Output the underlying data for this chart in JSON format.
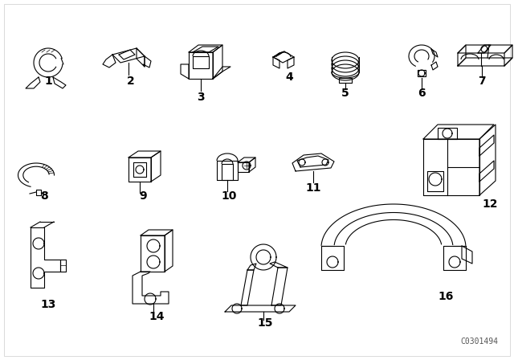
{
  "background_color": "#ffffff",
  "line_color": "#000000",
  "part_number_color": "#000000",
  "diagram_id": "C0301494",
  "figsize": [
    6.4,
    4.48
  ],
  "dpi": 100,
  "border_color": "#cccccc"
}
